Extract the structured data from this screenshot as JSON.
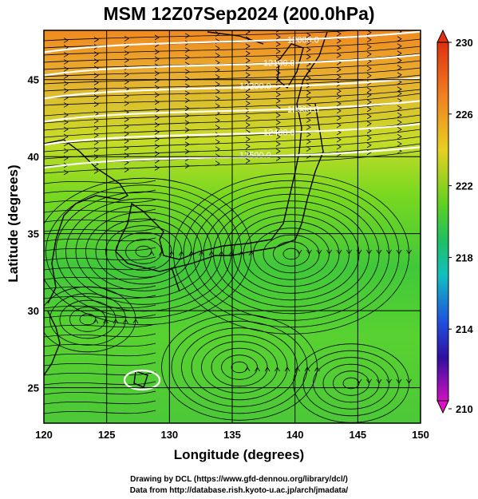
{
  "title": "MSM 12Z07Sep2024 (200.0hPa)",
  "xlabel": "Longitude (degrees)",
  "ylabel": "Latitude  (degrees)",
  "xticks": [
    "120",
    "125",
    "130",
    "135",
    "140",
    "145",
    "150"
  ],
  "yticks": [
    "25",
    "30",
    "35",
    "40",
    "45"
  ],
  "colorbar": {
    "ticks": [
      "230",
      "226",
      "222",
      "218",
      "214",
      "210"
    ],
    "min": 210,
    "max": 230
  },
  "contours": [
    {
      "label": "12500.0",
      "lat": 40.0
    },
    {
      "label": "12400.0",
      "lat": 41.5
    },
    {
      "label": "12300.0",
      "lat": 43.0
    },
    {
      "label": "12200.0",
      "lat": 44.5
    },
    {
      "label": "12100.0",
      "lat": 46.0
    },
    {
      "label": "12000.0",
      "lat": 47.5
    }
  ],
  "credits": {
    "line1": "Drawing by DCL (https://www.gfd-dennou.org/library/dcl/)",
    "line2": "Data from http://database.rish.kyoto-u.ac.jp/arch/jmadata/"
  },
  "colors": {
    "warm": "#f0a030",
    "mid": "#c8d820",
    "cool": "#40c040"
  }
}
